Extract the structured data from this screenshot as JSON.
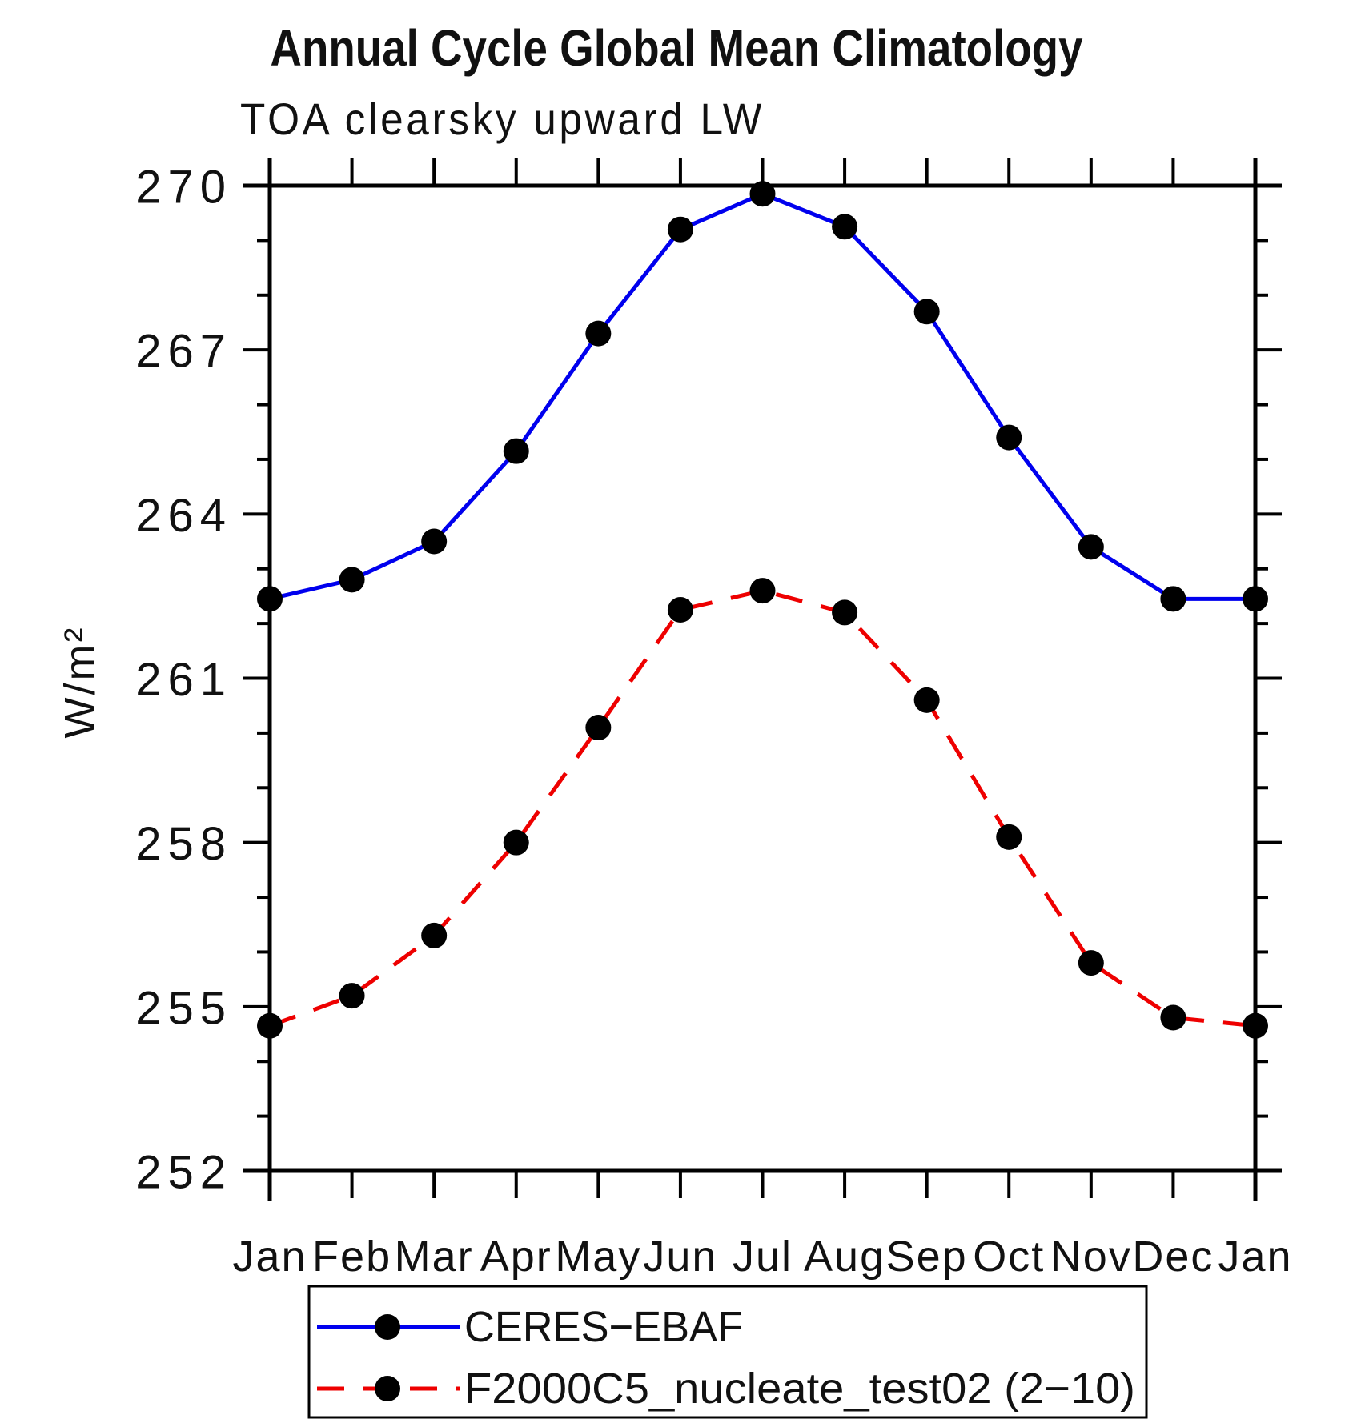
{
  "title": "Annual Cycle Global Mean Climatology",
  "subtitle": "TOA clearsky upward LW",
  "y_axis_label": "W/m²",
  "chart_data": {
    "type": "line",
    "x_categories": [
      "Jan",
      "Feb",
      "Mar",
      "Apr",
      "May",
      "Jun",
      "Jul",
      "Aug",
      "Sep",
      "Oct",
      "Nov",
      "Dec",
      "Jan"
    ],
    "series": [
      {
        "name": "CERES−EBAF",
        "color": "#0000ee",
        "line_style": "solid",
        "marker": "filled-circle",
        "marker_color": "#000000",
        "values": [
          262.45,
          262.8,
          263.5,
          265.15,
          267.3,
          269.2,
          269.85,
          269.25,
          267.7,
          265.4,
          263.4,
          262.45,
          262.45
        ]
      },
      {
        "name": "F2000C5_nucleate_test02 (2−10)",
        "color": "#ee0000",
        "line_style": "dashed",
        "marker": "filled-circle",
        "marker_color": "#000000",
        "values": [
          254.65,
          255.2,
          256.3,
          258.0,
          260.1,
          262.25,
          262.6,
          262.2,
          260.6,
          258.1,
          255.8,
          254.8,
          254.65
        ]
      }
    ],
    "ylim": [
      252,
      270
    ],
    "y_major_ticks": [
      252,
      255,
      258,
      261,
      264,
      267,
      270
    ],
    "y_minor_step": 1,
    "x_minor_ticks": false,
    "grid": false,
    "legend_position": "bottom",
    "frame_color": "#000000"
  }
}
